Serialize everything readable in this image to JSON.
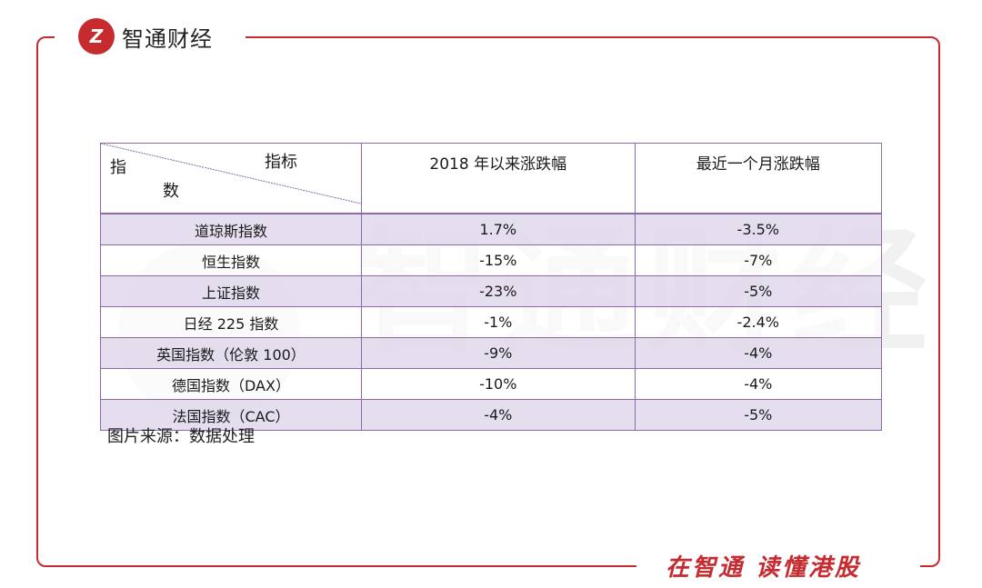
{
  "brand": {
    "logo_mark": "Z",
    "name": "智通财经",
    "slogan": "在智通  读懂港股",
    "accent": "#c62b30"
  },
  "watermark": "智通财经",
  "table": {
    "corner": {
      "left": "指",
      "right": "指标",
      "bottom": "数"
    },
    "headers": [
      "2018 年以来涨跌幅",
      "最近一个月涨跌幅"
    ],
    "rows": [
      {
        "name": "道琼斯指数",
        "ytd": "1.7%",
        "month": "-3.5%"
      },
      {
        "name": "恒生指数",
        "ytd": "-15%",
        "month": "-7%"
      },
      {
        "name": "上证指数",
        "ytd": "-23%",
        "month": "-5%"
      },
      {
        "name": "日经 225 指数",
        "ytd": "-1%",
        "month": "-2.4%"
      },
      {
        "name": "英国指数（伦敦 100）",
        "ytd": "-9%",
        "month": "-4%"
      },
      {
        "name": "德国指数（DAX）",
        "ytd": "-10%",
        "month": "-4%"
      },
      {
        "name": "法国指数（CAC）",
        "ytd": "-4%",
        "month": "-5%"
      }
    ]
  },
  "source": "图片来源：数据处理"
}
